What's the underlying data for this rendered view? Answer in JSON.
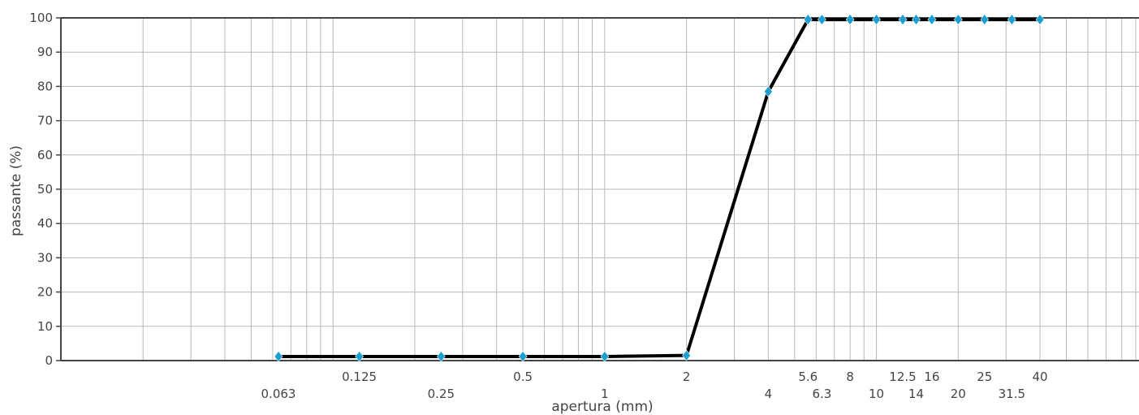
{
  "chart_data": {
    "type": "line",
    "title": "",
    "xlabel": "apertura (mm)",
    "ylabel": "passante (%)",
    "xscale": "log",
    "ylim": [
      0,
      100
    ],
    "yticks": [
      0,
      10,
      20,
      30,
      40,
      50,
      60,
      70,
      80,
      90,
      100
    ],
    "grid": true,
    "xticks_upper": [
      "0.125",
      "0.5",
      "2",
      "5.6",
      "8",
      "12.5",
      "16",
      "25",
      "40"
    ],
    "xticks_lower": [
      "0.063",
      "0.25",
      "1",
      "4",
      "6.3",
      "10",
      "14",
      "20",
      "31.5"
    ],
    "series": [
      {
        "x": [
          0.063,
          0.125,
          0.25,
          0.5,
          1,
          2,
          4,
          5.6,
          6.3,
          8,
          10,
          12.5,
          14,
          16,
          20,
          25,
          31.5,
          40
        ],
        "y": [
          1.2,
          1.2,
          1.2,
          1.2,
          1.2,
          1.5,
          78.5,
          99.5,
          99.5,
          99.5,
          99.5,
          99.5,
          99.5,
          99.5,
          99.5,
          99.5,
          99.5,
          99.5
        ]
      }
    ],
    "colors": {
      "line": "#000000",
      "marker": "#1a9fd0",
      "grid": "#b8b8b8",
      "axis": "#444444",
      "text": "#444444"
    }
  }
}
